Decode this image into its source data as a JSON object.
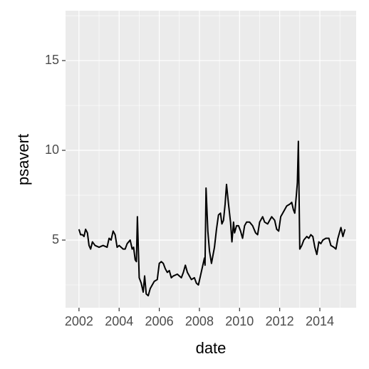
{
  "chart_data": {
    "type": "line",
    "x_label": "date",
    "y_label": "psavert",
    "x": [
      2002.0,
      2002.08,
      2002.17,
      2002.25,
      2002.33,
      2002.42,
      2002.5,
      2002.58,
      2002.67,
      2002.8,
      2003.0,
      2003.2,
      2003.4,
      2003.5,
      2003.6,
      2003.7,
      2003.8,
      2003.9,
      2004.0,
      2004.2,
      2004.3,
      2004.4,
      2004.55,
      2004.65,
      2004.72,
      2004.8,
      2004.86,
      2004.91,
      2005.0,
      2005.1,
      2005.2,
      2005.27,
      2005.35,
      2005.45,
      2005.55,
      2005.65,
      2005.75,
      2005.9,
      2006.0,
      2006.1,
      2006.2,
      2006.3,
      2006.4,
      2006.5,
      2006.6,
      2006.7,
      2006.9,
      2007.1,
      2007.2,
      2007.3,
      2007.4,
      2007.5,
      2007.6,
      2007.75,
      2007.85,
      2007.95,
      2008.05,
      2008.15,
      2008.25,
      2008.28,
      2008.33,
      2008.42,
      2008.5,
      2008.6,
      2008.75,
      2008.85,
      2008.95,
      2009.05,
      2009.12,
      2009.2,
      2009.28,
      2009.35,
      2009.45,
      2009.55,
      2009.62,
      2009.7,
      2009.75,
      2009.85,
      2009.95,
      2010.05,
      2010.15,
      2010.25,
      2010.35,
      2010.5,
      2010.65,
      2010.8,
      2010.9,
      2011.0,
      2011.15,
      2011.25,
      2011.4,
      2011.5,
      2011.6,
      2011.75,
      2011.85,
      2011.95,
      2012.05,
      2012.2,
      2012.35,
      2012.5,
      2012.6,
      2012.68,
      2012.75,
      2012.83,
      2012.88,
      2012.93,
      2013.0,
      2013.1,
      2013.2,
      2013.35,
      2013.45,
      2013.55,
      2013.65,
      2013.75,
      2013.85,
      2013.95,
      2014.05,
      2014.15,
      2014.3,
      2014.45,
      2014.55,
      2014.7,
      2014.8,
      2014.9,
      2015.0,
      2015.05,
      2015.15,
      2015.25
    ],
    "values": [
      5.6,
      5.3,
      5.3,
      5.2,
      5.6,
      5.4,
      4.7,
      4.5,
      4.9,
      4.7,
      4.6,
      4.7,
      4.6,
      5.1,
      5.0,
      5.5,
      5.3,
      4.6,
      4.7,
      4.5,
      4.5,
      4.8,
      5.0,
      4.5,
      4.6,
      3.9,
      3.8,
      6.3,
      2.9,
      2.6,
      2.1,
      3.0,
      2.0,
      1.9,
      2.3,
      2.5,
      2.7,
      2.8,
      3.7,
      3.8,
      3.7,
      3.4,
      3.2,
      3.3,
      2.9,
      3.0,
      3.1,
      2.9,
      3.2,
      3.6,
      3.2,
      3.0,
      2.8,
      2.9,
      2.6,
      2.5,
      3.0,
      3.5,
      4.0,
      3.6,
      7.9,
      5.5,
      4.4,
      3.7,
      4.6,
      5.6,
      6.4,
      6.5,
      5.9,
      6.1,
      7.0,
      8.1,
      7.0,
      6.0,
      4.9,
      6.0,
      5.4,
      5.8,
      5.8,
      5.5,
      5.1,
      5.8,
      6.0,
      6.0,
      5.8,
      5.4,
      5.3,
      6.0,
      6.3,
      6.0,
      5.9,
      6.1,
      6.3,
      6.1,
      5.6,
      5.5,
      6.3,
      6.6,
      6.9,
      7.0,
      7.1,
      6.7,
      6.5,
      7.5,
      8.2,
      10.5,
      4.5,
      4.7,
      5.0,
      5.2,
      5.1,
      5.3,
      5.2,
      4.6,
      4.2,
      4.9,
      4.8,
      5.0,
      5.1,
      5.1,
      4.7,
      4.6,
      4.5,
      5.1,
      5.5,
      5.7,
      5.2,
      5.6
    ],
    "color": "#000000",
    "xlim": [
      2001.33,
      2015.81
    ],
    "xticks": [
      2002,
      2004,
      2006,
      2008,
      2010,
      2012,
      2014
    ],
    "ylim": [
      1.23,
      17.78
    ],
    "yticks": [
      5,
      10,
      15
    ],
    "grid": true
  }
}
